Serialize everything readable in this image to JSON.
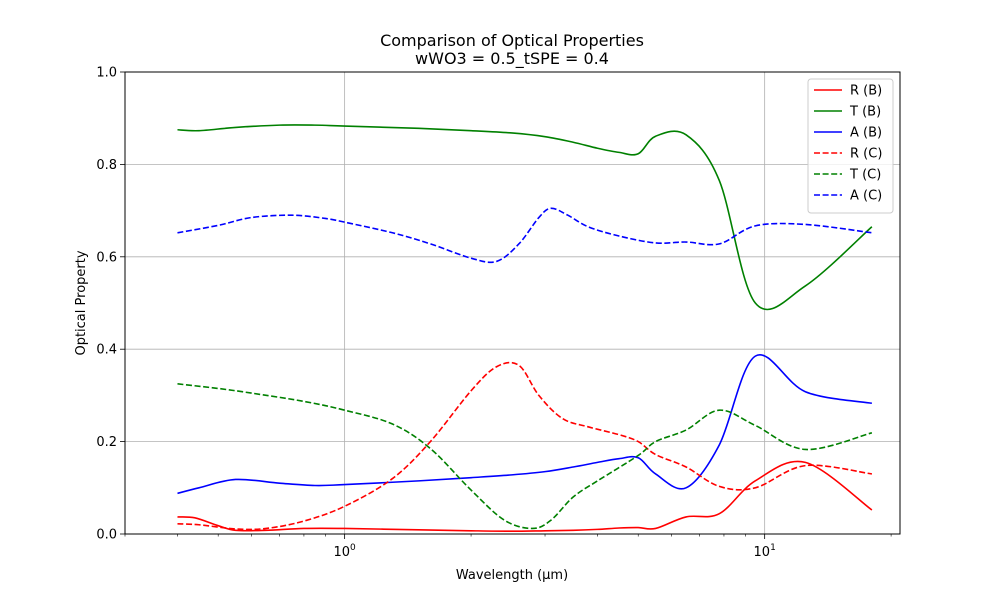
{
  "chart_data": {
    "type": "line",
    "title": "Comparison of Optical Properties",
    "subtitle": "wWO3 = 0.5_tSPE = 0.4",
    "xlabel": "Wavelength (μm)",
    "ylabel": "Optical Property",
    "xscale": "log",
    "xlim": [
      0.3,
      21
    ],
    "ylim": [
      0.0,
      1.0
    ],
    "grid": true,
    "legend_position": "top-right",
    "x_ticks": [
      {
        "value": 1,
        "base": "10",
        "exp": "0"
      },
      {
        "value": 10,
        "base": "10",
        "exp": "1"
      }
    ],
    "y_ticks": [
      "0.0",
      "0.2",
      "0.4",
      "0.6",
      "0.8",
      "1.0"
    ],
    "series": [
      {
        "name": "R (B)",
        "color": "#ff0000",
        "dash": "solid",
        "x": [
          0.4,
          0.44,
          0.5,
          0.55,
          0.65,
          0.8,
          1.0,
          1.5,
          2.0,
          2.5,
          3.0,
          3.5,
          4.0,
          4.5,
          5.0,
          5.5,
          6.5,
          7.8,
          9.5,
          12.5,
          18.0
        ],
        "y": [
          0.037,
          0.035,
          0.018,
          0.008,
          0.008,
          0.012,
          0.012,
          0.009,
          0.007,
          0.006,
          0.007,
          0.008,
          0.01,
          0.013,
          0.014,
          0.012,
          0.037,
          0.044,
          0.115,
          0.155,
          0.052
        ]
      },
      {
        "name": "T (B)",
        "color": "#008000",
        "dash": "solid",
        "x": [
          0.4,
          0.45,
          0.55,
          0.7,
          0.85,
          1.0,
          1.5,
          2.0,
          2.5,
          3.0,
          3.5,
          4.0,
          4.5,
          5.0,
          5.5,
          6.5,
          7.8,
          9.5,
          12.5,
          18.0
        ],
        "y": [
          0.875,
          0.873,
          0.88,
          0.885,
          0.885,
          0.883,
          0.878,
          0.873,
          0.868,
          0.86,
          0.848,
          0.835,
          0.826,
          0.823,
          0.861,
          0.864,
          0.765,
          0.5,
          0.537,
          0.665
        ]
      },
      {
        "name": "A (B)",
        "color": "#0000ff",
        "dash": "solid",
        "x": [
          0.4,
          0.45,
          0.55,
          0.7,
          0.85,
          1.0,
          1.5,
          2.0,
          2.5,
          3.0,
          3.5,
          4.0,
          4.5,
          5.0,
          5.5,
          6.5,
          7.8,
          9.5,
          12.5,
          18.0
        ],
        "y": [
          0.088,
          0.1,
          0.118,
          0.11,
          0.105,
          0.107,
          0.115,
          0.122,
          0.128,
          0.135,
          0.145,
          0.155,
          0.163,
          0.165,
          0.13,
          0.1,
          0.193,
          0.385,
          0.308,
          0.283
        ]
      },
      {
        "name": "R (C)",
        "color": "#ff0000",
        "dash": "dashed",
        "x": [
          0.4,
          0.45,
          0.55,
          0.65,
          0.8,
          1.0,
          1.3,
          1.6,
          2.0,
          2.3,
          2.6,
          2.9,
          3.3,
          3.8,
          4.5,
          5.0,
          5.5,
          6.5,
          7.8,
          9.5,
          12.5,
          18.0
        ],
        "y": [
          0.022,
          0.02,
          0.011,
          0.012,
          0.028,
          0.06,
          0.12,
          0.2,
          0.31,
          0.362,
          0.365,
          0.3,
          0.25,
          0.232,
          0.215,
          0.2,
          0.172,
          0.145,
          0.103,
          0.1,
          0.148,
          0.13
        ]
      },
      {
        "name": "T (C)",
        "color": "#008000",
        "dash": "dashed",
        "x": [
          0.4,
          0.5,
          0.6,
          0.8,
          1.0,
          1.3,
          1.6,
          2.0,
          2.4,
          2.8,
          3.1,
          3.5,
          4.0,
          5.0,
          5.5,
          6.5,
          7.8,
          9.5,
          12.5,
          18.0
        ],
        "y": [
          0.325,
          0.315,
          0.305,
          0.287,
          0.268,
          0.238,
          0.185,
          0.095,
          0.03,
          0.012,
          0.03,
          0.08,
          0.115,
          0.17,
          0.2,
          0.225,
          0.268,
          0.235,
          0.183,
          0.219
        ]
      },
      {
        "name": "A (C)",
        "color": "#0000ff",
        "dash": "dashed",
        "x": [
          0.4,
          0.5,
          0.6,
          0.75,
          0.9,
          1.0,
          1.3,
          1.6,
          2.0,
          2.3,
          2.6,
          2.9,
          3.1,
          3.4,
          3.8,
          4.5,
          5.5,
          6.5,
          7.8,
          9.5,
          12.5,
          18.0
        ],
        "y": [
          0.652,
          0.668,
          0.685,
          0.69,
          0.683,
          0.675,
          0.652,
          0.628,
          0.597,
          0.59,
          0.628,
          0.685,
          0.705,
          0.69,
          0.665,
          0.645,
          0.63,
          0.632,
          0.628,
          0.667,
          0.67,
          0.652
        ]
      }
    ]
  }
}
